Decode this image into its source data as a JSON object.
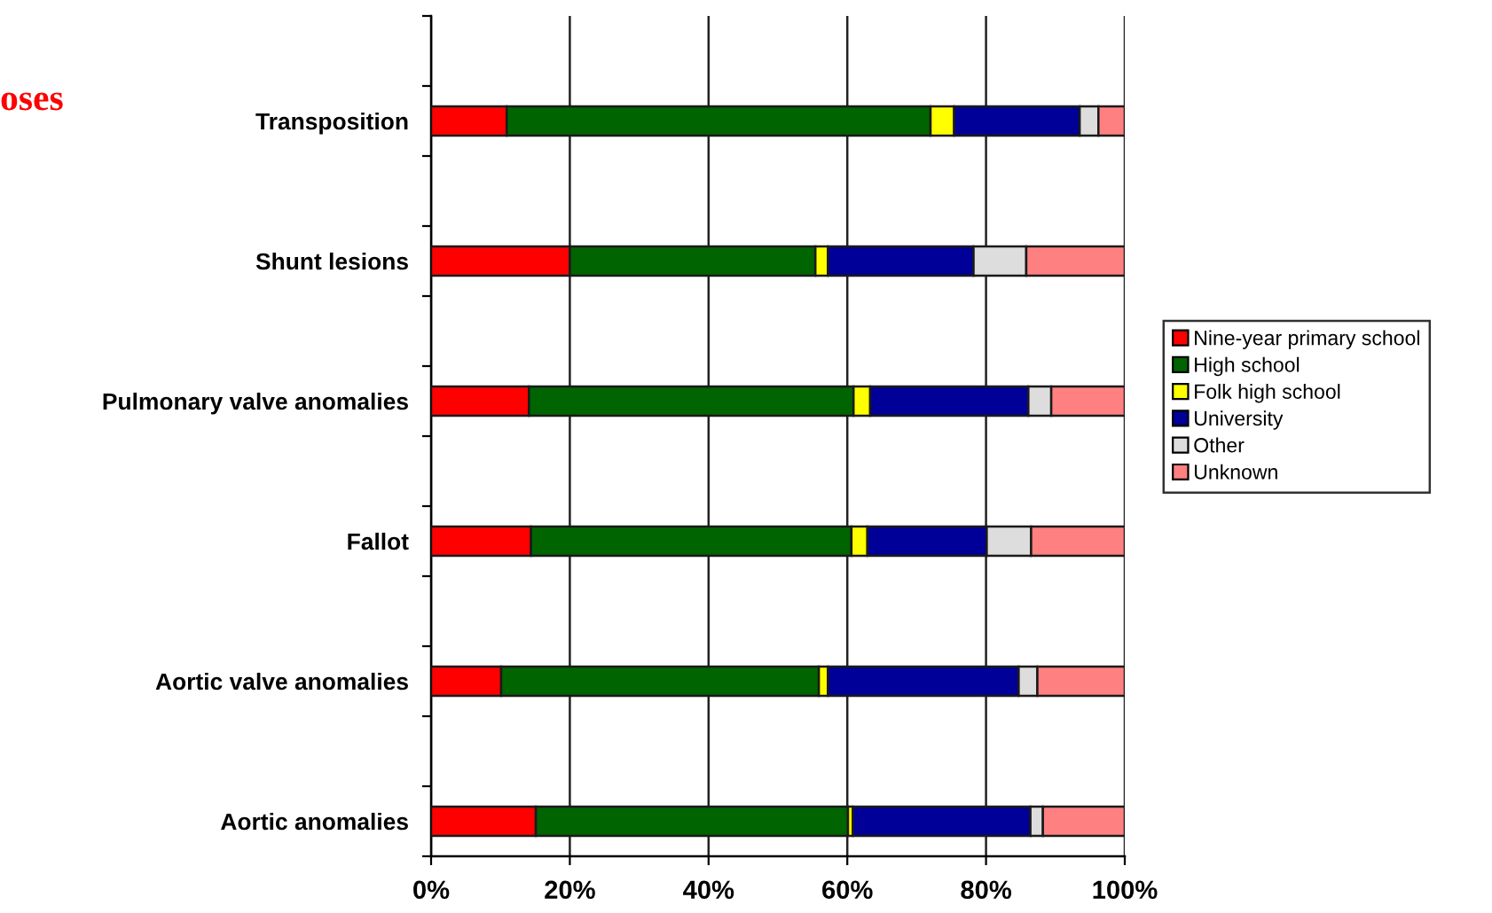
{
  "chart_data": {
    "type": "bar",
    "orientation": "horizontal",
    "stacked": true,
    "title": "oses",
    "categories": [
      "Transposition",
      "Shunt lesions",
      "Pulmonary valve anomalies",
      "Fallot",
      "Aortic valve anomalies",
      "Aortic anomalies"
    ],
    "series": [
      {
        "name": "Nine-year primary school",
        "color": "#ff0000",
        "values": [
          10.9,
          20.0,
          14.1,
          14.4,
          10.1,
          15.1
        ]
      },
      {
        "name": "High school",
        "color": "#006400",
        "values": [
          61.1,
          35.4,
          46.8,
          46.2,
          45.8,
          45.0
        ]
      },
      {
        "name": "Folk high school",
        "color": "#ffff00",
        "values": [
          3.4,
          1.8,
          2.4,
          2.3,
          1.3,
          0.7
        ]
      },
      {
        "name": "University",
        "color": "#000099",
        "values": [
          18.1,
          21.0,
          22.8,
          17.2,
          27.5,
          25.6
        ]
      },
      {
        "name": "Other",
        "color": "#dddddd",
        "values": [
          2.7,
          7.6,
          3.3,
          6.4,
          2.7,
          1.8
        ]
      },
      {
        "name": "Unknown",
        "color": "#ff8080",
        "values": [
          3.8,
          14.2,
          10.6,
          13.5,
          12.6,
          11.8
        ]
      }
    ],
    "xlim": [
      0,
      100
    ],
    "xticks": [
      {
        "value": 0,
        "label": "0%"
      },
      {
        "value": 20,
        "label": "20%"
      },
      {
        "value": 40,
        "label": "40%"
      },
      {
        "value": 60,
        "label": "60%"
      },
      {
        "value": 80,
        "label": "80%"
      },
      {
        "value": 100,
        "label": "100%"
      }
    ],
    "grid": "x",
    "legend": "right"
  }
}
